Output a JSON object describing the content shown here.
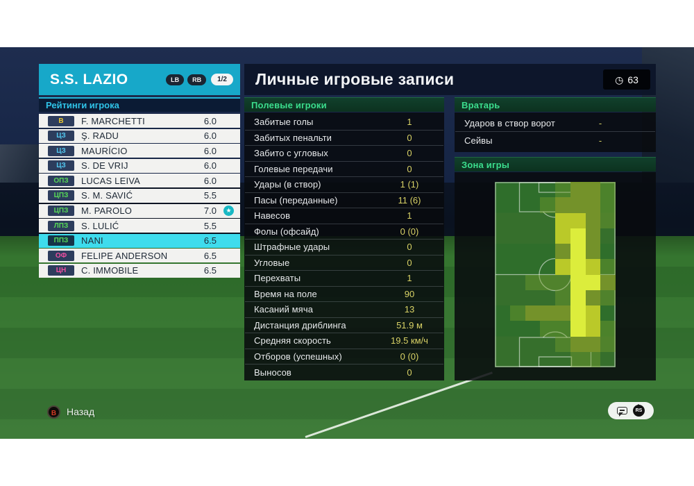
{
  "colors": {
    "accent_cyan": "#17a8c9",
    "selected_row": "#3edced",
    "value_yellow": "#d9d266",
    "section_green_text": "#3bdd8d",
    "ratings_header_text": "#2fc3e8",
    "position_text": {
      "gk": "#e9c832",
      "df": "#52c6ee",
      "mf": "#57d957",
      "fw": "#ef4fa0"
    },
    "heat_palette": [
      "transparent",
      "rgba(120,160,45,0.40)",
      "#74922a",
      "#bac929",
      "#dced3c"
    ]
  },
  "header": {
    "team_name": "S.S. LAZIO",
    "bumper_left": "LB",
    "bumper_right": "RB",
    "page_indicator": "1/2",
    "title": "Личные игровые записи",
    "clock_glyph": "◷",
    "clock_value": "63"
  },
  "ratings": {
    "header": "Рейтинги игрока",
    "star_glyph": "★",
    "players": [
      {
        "pos": "В",
        "pos_type": "gk",
        "name": "F. MARCHETTI",
        "rating": "6.0",
        "selected": false,
        "star": false
      },
      {
        "pos": "ЦЗ",
        "pos_type": "df",
        "name": "Ş. RADU",
        "rating": "6.0",
        "selected": false,
        "star": false
      },
      {
        "pos": "ЦЗ",
        "pos_type": "df",
        "name": "MAURÍCIO",
        "rating": "6.0",
        "selected": false,
        "star": false
      },
      {
        "pos": "ЦЗ",
        "pos_type": "df",
        "name": "S. DE VRIJ",
        "rating": "6.0",
        "selected": false,
        "star": false
      },
      {
        "pos": "ОПЗ",
        "pos_type": "mf",
        "name": "LUCAS LEIVA",
        "rating": "6.0",
        "selected": false,
        "star": false
      },
      {
        "pos": "ЦПЗ",
        "pos_type": "mf",
        "name": "S. M. SAVIĆ",
        "rating": "5.5",
        "selected": false,
        "star": false
      },
      {
        "pos": "ЦПЗ",
        "pos_type": "mf",
        "name": "M. PAROLO",
        "rating": "7.0",
        "selected": false,
        "star": true
      },
      {
        "pos": "ЛПЗ",
        "pos_type": "mf",
        "name": "S. LULIĆ",
        "rating": "5.5",
        "selected": false,
        "star": false
      },
      {
        "pos": "ППЗ",
        "pos_type": "mf",
        "name": "NANI",
        "rating": "6.5",
        "selected": true,
        "star": false
      },
      {
        "pos": "ОФ",
        "pos_type": "fw",
        "name": "FELIPE ANDERSON",
        "rating": "6.5",
        "selected": false,
        "star": false
      },
      {
        "pos": "ЦН",
        "pos_type": "fw",
        "name": "C. IMMOBILE",
        "rating": "6.5",
        "selected": false,
        "star": false
      }
    ]
  },
  "field_players": {
    "header": "Полевые игроки",
    "stats": [
      {
        "label": "Забитые голы",
        "value": "1"
      },
      {
        "label": "Забитых пенальти",
        "value": "0"
      },
      {
        "label": "Забито с угловых",
        "value": "0"
      },
      {
        "label": "Голевые передачи",
        "value": "0"
      },
      {
        "label": "Удары (в створ)",
        "value": "1 (1)"
      },
      {
        "label": "Пасы (переданные)",
        "value": "11 (6)"
      },
      {
        "label": "Навесов",
        "value": "1"
      },
      {
        "label": "Фолы (офсайд)",
        "value": "0 (0)"
      },
      {
        "label": "Штрафные удары",
        "value": "0"
      },
      {
        "label": "Угловые",
        "value": "0"
      },
      {
        "label": "Перехваты",
        "value": "1"
      },
      {
        "label": "Время на поле",
        "value": "90"
      },
      {
        "label": "Касаний мяча",
        "value": "13"
      },
      {
        "label": "Дистанция дриблинга",
        "value": "51.9 м"
      },
      {
        "label": "Средняя скорость",
        "value": "19.5 км/ч"
      },
      {
        "label": "Отборов (успешных)",
        "value": "0 (0)"
      },
      {
        "label": "Выносов",
        "value": "0"
      }
    ]
  },
  "goalkeeper": {
    "header": "Вратарь",
    "stats": [
      {
        "label": "Ударов в створ ворот",
        "value": "-"
      },
      {
        "label": "Сейвы",
        "value": "-"
      }
    ]
  },
  "zone": {
    "header": "Зона игры",
    "grid": {
      "cols": 8,
      "rows": 12,
      "intensity": [
        [
          0,
          0,
          0,
          0,
          1,
          2,
          2,
          1
        ],
        [
          0,
          0,
          0,
          1,
          2,
          2,
          2,
          1
        ],
        [
          0,
          0,
          0,
          0,
          3,
          3,
          2,
          1
        ],
        [
          0,
          0,
          0,
          0,
          3,
          4,
          2,
          0
        ],
        [
          0,
          0,
          0,
          0,
          2,
          4,
          2,
          0
        ],
        [
          0,
          0,
          0,
          0,
          3,
          4,
          3,
          1
        ],
        [
          0,
          0,
          1,
          1,
          1,
          4,
          4,
          2
        ],
        [
          0,
          0,
          0,
          0,
          1,
          4,
          2,
          1
        ],
        [
          0,
          1,
          2,
          2,
          2,
          4,
          3,
          0
        ],
        [
          0,
          0,
          0,
          1,
          1,
          4,
          3,
          1
        ],
        [
          0,
          0,
          0,
          0,
          1,
          2,
          2,
          1
        ],
        [
          0,
          0,
          0,
          0,
          0,
          1,
          1,
          0
        ]
      ]
    }
  },
  "footer": {
    "back_button_glyph": "B",
    "back_label": "Назад",
    "rs_label": "RS"
  }
}
